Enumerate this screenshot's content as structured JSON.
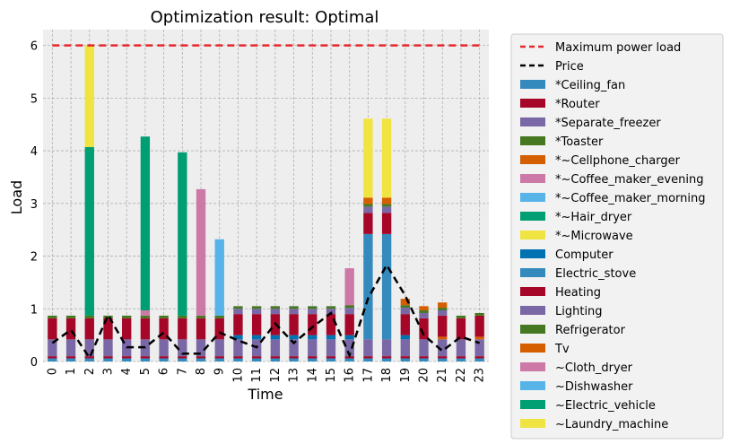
{
  "chart_data": {
    "type": "bar",
    "stacked": true,
    "title": "Optimization result: Optimal",
    "xlabel": "Time",
    "ylabel": "Load",
    "ylim": [
      0,
      6.3
    ],
    "yticks": [
      0,
      1,
      2,
      3,
      4,
      5,
      6
    ],
    "grid": true,
    "legend_position": "outside-right",
    "categories": [
      "0",
      "1",
      "2",
      "3",
      "4",
      "5",
      "6",
      "7",
      "8",
      "9",
      "10",
      "11",
      "12",
      "13",
      "14",
      "15",
      "16",
      "17",
      "18",
      "19",
      "20",
      "21",
      "22",
      "23"
    ],
    "lines": [
      {
        "name": "Maximum power load",
        "color": "#e8262a",
        "dash": "8,5",
        "values": [
          6,
          6,
          6,
          6,
          6,
          6,
          6,
          6,
          6,
          6,
          6,
          6,
          6,
          6,
          6,
          6,
          6,
          6,
          6,
          6,
          6,
          6,
          6,
          6
        ]
      },
      {
        "name": "Price",
        "color": "#000000",
        "dash": "8,5",
        "values": [
          0.35,
          0.6,
          0.07,
          0.88,
          0.27,
          0.27,
          0.55,
          0.15,
          0.15,
          0.55,
          0.4,
          0.27,
          0.72,
          0.35,
          0.65,
          0.92,
          0.12,
          1.2,
          1.83,
          1.25,
          0.5,
          0.2,
          0.47,
          0.35
        ]
      }
    ],
    "series": [
      {
        "name": "*Ceiling_fan",
        "color": "#348abd",
        "values": [
          0.06,
          0.06,
          0.06,
          0.06,
          0.06,
          0.06,
          0.06,
          0.06,
          0.06,
          0.06,
          0.06,
          0.06,
          0.06,
          0.06,
          0.06,
          0.06,
          0.06,
          0.06,
          0.06,
          0.06,
          0.06,
          0.06,
          0.06,
          0.06
        ]
      },
      {
        "name": "*Router",
        "color": "#a60628",
        "values": [
          0.04,
          0.04,
          0.04,
          0.04,
          0.04,
          0.04,
          0.04,
          0.04,
          0.04,
          0.04,
          0.04,
          0.04,
          0.04,
          0.04,
          0.04,
          0.04,
          0.04,
          0.04,
          0.04,
          0.04,
          0.04,
          0.04,
          0.04,
          0.04
        ]
      },
      {
        "name": "*Separate_freezer",
        "color": "#7a68a6",
        "values": [
          0.32,
          0.32,
          0.32,
          0.32,
          0.32,
          0.32,
          0.32,
          0.32,
          0.32,
          0.32,
          0.32,
          0.32,
          0.32,
          0.32,
          0.32,
          0.32,
          0.32,
          0.32,
          0.32,
          0.32,
          0.32,
          0.32,
          0.32,
          0.32
        ]
      },
      {
        "name": "*Toaster",
        "color": "#467821",
        "values": [
          0,
          0,
          0,
          0,
          0,
          0,
          0,
          0,
          0,
          0,
          0,
          0,
          0,
          0,
          0,
          0,
          0,
          0,
          0,
          0,
          0,
          0,
          0,
          0
        ]
      },
      {
        "name": "*~Cellphone_charger",
        "color": "#d55e00",
        "values": [
          0,
          0,
          0,
          0,
          0,
          0,
          0,
          0,
          0,
          0,
          0,
          0,
          0,
          0,
          0,
          0,
          0,
          0,
          0,
          0,
          0,
          0.05,
          0,
          0.05
        ]
      },
      {
        "name": "*~Coffee_maker_evening",
        "color": "#cc79a7",
        "values": [
          0,
          0,
          0,
          0,
          0,
          0,
          0,
          0,
          0,
          0,
          0,
          0,
          0,
          0,
          0,
          0,
          0,
          0,
          0,
          0,
          0,
          0,
          0,
          0
        ]
      },
      {
        "name": "*~Coffee_maker_morning",
        "color": "#56b4e9",
        "values": [
          0,
          0,
          0,
          0,
          0,
          0,
          0,
          0,
          0,
          0,
          0,
          0,
          0,
          0,
          0,
          0,
          0,
          0,
          0,
          0,
          0,
          0,
          0,
          0
        ]
      },
      {
        "name": "*~Hair_dryer",
        "color": "#009e73",
        "values": [
          0,
          0,
          0,
          0,
          0,
          0,
          0,
          0,
          0,
          0,
          0,
          0,
          0,
          0,
          0,
          0,
          0,
          0,
          0,
          0,
          0,
          0,
          0,
          0
        ]
      },
      {
        "name": "*~Microwave",
        "color": "#f0e442",
        "values": [
          0,
          0,
          0,
          0,
          0,
          0,
          0,
          0,
          0,
          0,
          0,
          0,
          0,
          0,
          0,
          0,
          0,
          0,
          0,
          0,
          0,
          0,
          0,
          0
        ]
      },
      {
        "name": "Computer",
        "color": "#0072b2",
        "values": [
          0,
          0,
          0,
          0,
          0,
          0,
          0,
          0,
          0,
          0,
          0.08,
          0.08,
          0.08,
          0.08,
          0.08,
          0.08,
          0.08,
          0,
          0,
          0.08,
          0,
          0,
          0,
          0
        ]
      },
      {
        "name": "Electric_stove",
        "color": "#348abd",
        "values": [
          0,
          0,
          0,
          0,
          0,
          0,
          0,
          0,
          0,
          0,
          0,
          0,
          0,
          0,
          0,
          0,
          0,
          2.0,
          2.0,
          0,
          0,
          0,
          0,
          0
        ]
      },
      {
        "name": "Heating",
        "color": "#a60628",
        "values": [
          0.4,
          0.4,
          0.4,
          0.4,
          0.4,
          0.4,
          0.4,
          0.4,
          0.4,
          0.4,
          0.4,
          0.4,
          0.4,
          0.4,
          0.4,
          0.4,
          0.4,
          0.4,
          0.4,
          0.4,
          0.4,
          0.4,
          0.4,
          0.4
        ]
      },
      {
        "name": "Lighting",
        "color": "#7a68a6",
        "values": [
          0,
          0,
          0,
          0,
          0,
          0,
          0,
          0,
          0,
          0,
          0.1,
          0.1,
          0.1,
          0.1,
          0.1,
          0.1,
          0.12,
          0.12,
          0.12,
          0.12,
          0.1,
          0.1,
          0,
          0
        ]
      },
      {
        "name": "Refrigerator",
        "color": "#467821",
        "values": [
          0.05,
          0.05,
          0.05,
          0.05,
          0.05,
          0.05,
          0.05,
          0.05,
          0.05,
          0.05,
          0.05,
          0.05,
          0.05,
          0.05,
          0.05,
          0.05,
          0.05,
          0.05,
          0.05,
          0.05,
          0.05,
          0.05,
          0.05,
          0.05
        ]
      },
      {
        "name": "Tv",
        "color": "#d55e00",
        "values": [
          0,
          0,
          0,
          0,
          0,
          0,
          0,
          0,
          0,
          0,
          0,
          0,
          0,
          0,
          0,
          0,
          0,
          0.12,
          0.12,
          0.12,
          0.08,
          0.1,
          0,
          0
        ]
      },
      {
        "name": "~Cloth_dryer",
        "color": "#cc79a7",
        "values": [
          0,
          0,
          0,
          0,
          0,
          0.1,
          0,
          0,
          2.4,
          0,
          0,
          0,
          0,
          0,
          0,
          0,
          0.7,
          0,
          0,
          0,
          0,
          0,
          0,
          0
        ]
      },
      {
        "name": "~Dishwasher",
        "color": "#56b4e9",
        "values": [
          0,
          0,
          0,
          0,
          0,
          0,
          0,
          0,
          0,
          1.45,
          0,
          0,
          0,
          0,
          0,
          0,
          0,
          0,
          0,
          0,
          0,
          0,
          0,
          0
        ]
      },
      {
        "name": "~Electric_vehicle",
        "color": "#009e73",
        "values": [
          0,
          0,
          3.2,
          0,
          0,
          3.3,
          0,
          3.1,
          0,
          0,
          0,
          0,
          0,
          0,
          0,
          0,
          0,
          0,
          0,
          0,
          0,
          0,
          0,
          0
        ]
      },
      {
        "name": "~Laundry_machine",
        "color": "#f0e442",
        "values": [
          0,
          0,
          1.93,
          0,
          0,
          0,
          0,
          0,
          0,
          0,
          0,
          0,
          0,
          0,
          0,
          0,
          0,
          1.5,
          1.5,
          0,
          0,
          0,
          0,
          0
        ]
      }
    ]
  }
}
